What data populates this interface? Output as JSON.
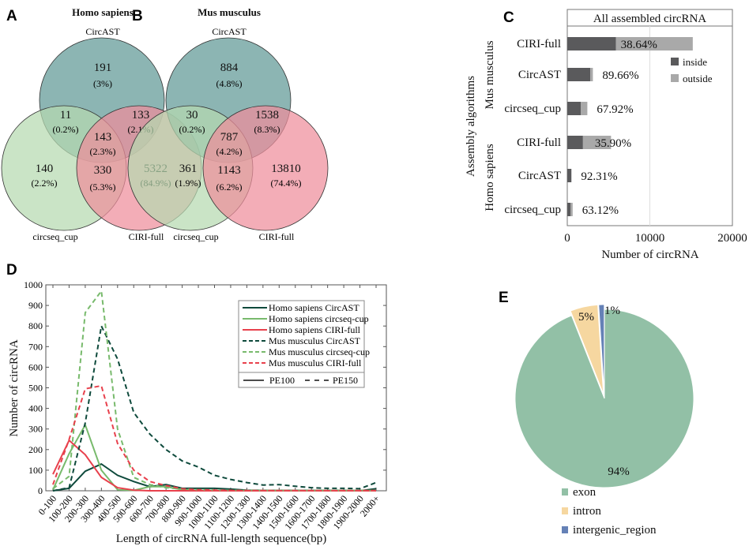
{
  "panels": {
    "a": "A",
    "b": "B",
    "c": "C",
    "d": "D",
    "e": "E"
  },
  "venns": [
    {
      "title": "Homo sapiens",
      "sets": [
        "CircAST",
        "circseq_cup",
        "CIRI-full"
      ],
      "regions": {
        "circast_only": {
          "count": "191",
          "pct": "(3%)"
        },
        "circast_circseq": {
          "count": "11",
          "pct": "(0.2%)"
        },
        "circast_ciri": {
          "count": "133",
          "pct": "(2.1%)"
        },
        "all_three": {
          "count": "143",
          "pct": "(2.3%)"
        },
        "circseq_only": {
          "count": "140",
          "pct": "(2.2%)"
        },
        "circseq_ciri": {
          "count": "330",
          "pct": "(5.3%)"
        },
        "ciri_only": {
          "count": "5322",
          "pct": "(84.9%)"
        }
      }
    },
    {
      "title": "Mus musculus",
      "sets": [
        "CircAST",
        "circseq_cup",
        "CIRI-full"
      ],
      "regions": {
        "circast_only": {
          "count": "884",
          "pct": "(4.8%)"
        },
        "circast_circseq": {
          "count": "30",
          "pct": "(0.2%)"
        },
        "circast_ciri": {
          "count": "1538",
          "pct": "(8.3%)"
        },
        "all_three": {
          "count": "787",
          "pct": "(4.2%)"
        },
        "circseq_only": {
          "count": "361",
          "pct": "(1.9%)"
        },
        "circseq_ciri": {
          "count": "1143",
          "pct": "(6.2%)"
        },
        "ciri_only": {
          "count": "13810",
          "pct": "(74.4%)"
        }
      }
    }
  ],
  "venn_colors": {
    "circast": "#5f9896",
    "circseq_cup": "#b5d9b0",
    "ciri_full": "#ef8e9b"
  },
  "chart_data": [
    {
      "type": "bar",
      "orientation": "horizontal",
      "stacked": true,
      "title": "All assembled circRNA",
      "xlabel": "Number of circRNA",
      "ylabel": "Assembly algorithms",
      "xlim": [
        0,
        20000
      ],
      "xticks": [
        "0",
        "10000",
        "20000"
      ],
      "grid": "vertical at 10000",
      "legend": {
        "position": "right",
        "entries": [
          "inside",
          "outside"
        ]
      },
      "colors": {
        "inside": "#5a5a5c",
        "outside": "#a9a9a9"
      },
      "groups": [
        "Mus musculus",
        "Homo sapiens"
      ],
      "categories": [
        "CIRI-full",
        "CircAST",
        "circseq_cup",
        "CIRI-full",
        "CircAST",
        "circseq_cup"
      ],
      "category_groups": [
        "Mus musculus",
        "Mus musculus",
        "Mus musculus",
        "Homo sapiens",
        "Homo sapiens",
        "Homo sapiens"
      ],
      "series": [
        {
          "name": "inside",
          "values": [
            5900,
            2780,
            1650,
            1900,
            480,
            410
          ]
        },
        {
          "name": "outside",
          "values": [
            9300,
            320,
            780,
            3400,
            40,
            240
          ]
        }
      ],
      "labels": [
        "38.64%",
        "89.66%",
        "67.92%",
        "35.90%",
        "92.31%",
        "63.12%"
      ]
    },
    {
      "type": "line",
      "xlabel": "Length of circRNA full-length sequence(bp)",
      "ylabel": "Number of circRNA",
      "ylim": [
        0,
        1000
      ],
      "yticks": [
        "0",
        "100",
        "200",
        "300",
        "400",
        "500",
        "600",
        "700",
        "800",
        "900",
        "1000"
      ],
      "categories": [
        "0-100",
        "100-200",
        "200-300",
        "300-400",
        "400-500",
        "500-600",
        "600-700",
        "700-800",
        "800-900",
        "900-1000",
        "1000-1100",
        "1100-1200",
        "1200-1300",
        "1300-1400",
        "1400-1500",
        "1500-1600",
        "1600-1700",
        "1700-1800",
        "1800-1900",
        "1900-2000",
        "2000+"
      ],
      "legend": {
        "position": "top-right",
        "style_key": [
          "PE100",
          "PE150"
        ]
      },
      "series": [
        {
          "name": "Homo sapiens CircAST",
          "color": "#0e4a3c",
          "dash": false,
          "values": [
            0,
            12,
            95,
            130,
            75,
            45,
            20,
            30,
            12,
            12,
            12,
            8,
            3,
            2,
            2,
            2,
            2,
            2,
            2,
            0,
            10
          ]
        },
        {
          "name": "Homo sapiens circseq-cup",
          "color": "#78ba6c",
          "dash": false,
          "values": [
            5,
            180,
            320,
            100,
            5,
            2,
            20,
            20,
            5,
            2,
            2,
            1,
            1,
            1,
            1,
            1,
            1,
            1,
            1,
            1,
            1
          ]
        },
        {
          "name": "Homo sapiens CIRI-full",
          "color": "#e8404c",
          "dash": false,
          "values": [
            80,
            245,
            175,
            65,
            15,
            3,
            0,
            0,
            0,
            0,
            0,
            0,
            0,
            0,
            0,
            0,
            0,
            0,
            0,
            0,
            0
          ]
        },
        {
          "name": "Mus musculus CircAST",
          "color": "#0e4a3c",
          "dash": true,
          "values": [
            0,
            15,
            330,
            800,
            640,
            380,
            275,
            200,
            145,
            115,
            75,
            55,
            40,
            28,
            30,
            22,
            15,
            12,
            12,
            10,
            40
          ]
        },
        {
          "name": "Mus musculus circseq-cup",
          "color": "#78ba6c",
          "dash": true,
          "values": [
            10,
            70,
            865,
            970,
            300,
            65,
            30,
            15,
            8,
            5,
            3,
            2,
            2,
            1,
            1,
            1,
            1,
            1,
            1,
            1,
            1
          ]
        },
        {
          "name": "Mus musculus CIRI-full",
          "color": "#e8404c",
          "dash": true,
          "values": [
            30,
            250,
            495,
            510,
            230,
            100,
            45,
            25,
            10,
            5,
            3,
            2,
            1,
            1,
            1,
            1,
            1,
            1,
            1,
            1,
            1
          ]
        }
      ]
    },
    {
      "type": "pie",
      "legend": {
        "position": "bottom"
      },
      "slices": [
        {
          "label": "exon",
          "value": 94,
          "text": "94%",
          "color": "#92c0a6"
        },
        {
          "label": "intron",
          "value": 5,
          "text": "5%",
          "color": "#f6d7a0"
        },
        {
          "label": "intergenic_region",
          "value": 1,
          "text": "1%",
          "color": "#6581b6"
        }
      ]
    }
  ]
}
